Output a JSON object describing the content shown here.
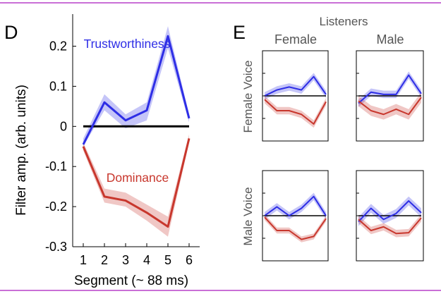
{
  "frame": {
    "rule_color": "#c96fd6"
  },
  "panel_d": {
    "letter": "D",
    "chart_data": {
      "type": "line",
      "x": [
        1,
        2,
        3,
        4,
        5,
        6
      ],
      "xlabel": "Segment (~ 88 ms)",
      "ylabel": "Filter amp. (arb. units)",
      "xlim": [
        0.5,
        6.5
      ],
      "ylim": [
        -0.3,
        0.28
      ],
      "xticks": [
        1,
        2,
        3,
        4,
        5,
        6
      ],
      "yticks": [
        0.2,
        0.1,
        0,
        -0.1,
        -0.2,
        -0.3
      ],
      "ytick_labels": [
        "0.2",
        "0.1",
        "0",
        "-0.1",
        "-0.2",
        "-0.3"
      ],
      "grid": false,
      "zero_line": true,
      "series": [
        {
          "name": "Trustworthiness",
          "color": "#2e2ee6",
          "values": [
            -0.045,
            0.06,
            0.015,
            0.04,
            0.225,
            0.02
          ],
          "lower": [
            -0.05,
            0.04,
            -0.005,
            0.015,
            0.195,
            0.01
          ],
          "upper": [
            -0.03,
            0.08,
            0.03,
            0.06,
            0.25,
            0.03
          ]
        },
        {
          "name": "Dominance",
          "color": "#c8372d",
          "values": [
            -0.05,
            -0.175,
            -0.185,
            -0.215,
            -0.25,
            -0.03
          ],
          "lower": [
            -0.06,
            -0.19,
            -0.2,
            -0.235,
            -0.275,
            -0.04
          ],
          "upper": [
            -0.04,
            -0.155,
            -0.165,
            -0.195,
            -0.225,
            -0.02
          ]
        }
      ]
    }
  },
  "panel_e": {
    "letter": "E",
    "super_title": "Listeners",
    "col_labels": [
      "Female",
      "Male"
    ],
    "row_labels": [
      "Female Voice",
      "Male Voice"
    ],
    "chart_data": {
      "type": "line",
      "x": [
        1,
        2,
        3,
        4,
        5,
        6
      ],
      "ylim": [
        -0.3,
        0.28
      ],
      "zero_line": true,
      "subplots": [
        {
          "row": "Female Voice",
          "col": "Female",
          "series": [
            {
              "name": "",
              "color": "#2e2ee6",
              "values": [
                0.0,
                0.08,
                0.12,
                0.08,
                0.26,
                0.02
              ],
              "band": 0.05
            },
            {
              "name": "",
              "color": "#c8372d",
              "values": [
                -0.05,
                -0.2,
                -0.2,
                -0.25,
                -0.38,
                -0.08
              ],
              "band": 0.05
            }
          ]
        },
        {
          "row": "Female Voice",
          "col": "Male",
          "series": [
            {
              "name": "",
              "color": "#2e2ee6",
              "values": [
                -0.1,
                0.05,
                0.02,
                0.02,
                0.28,
                0.03
              ],
              "band": 0.05
            },
            {
              "name": "",
              "color": "#c8372d",
              "values": [
                -0.07,
                -0.2,
                -0.25,
                -0.18,
                -0.25,
                -0.02
              ],
              "band": 0.07
            }
          ]
        },
        {
          "row": "Male Voice",
          "col": "Female",
          "series": [
            {
              "name": "",
              "color": "#2e2ee6",
              "values": [
                0.0,
                0.12,
                0.0,
                0.1,
                0.26,
                0.0
              ],
              "band": 0.05
            },
            {
              "name": "",
              "color": "#c8372d",
              "values": [
                -0.02,
                -0.2,
                -0.2,
                -0.32,
                -0.28,
                -0.04
              ],
              "band": 0.04
            }
          ]
        },
        {
          "row": "Male Voice",
          "col": "Male",
          "series": [
            {
              "name": "",
              "color": "#2e2ee6",
              "values": [
                -0.08,
                0.1,
                -0.05,
                0.03,
                0.2,
                0.04
              ],
              "band": 0.06
            },
            {
              "name": "",
              "color": "#c8372d",
              "values": [
                -0.05,
                -0.2,
                -0.15,
                -0.24,
                -0.23,
                -0.03
              ],
              "band": 0.05
            }
          ]
        }
      ]
    }
  }
}
